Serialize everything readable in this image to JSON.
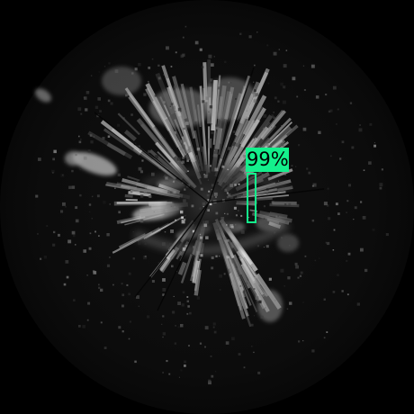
{
  "image": {
    "subject": "radar-sweep",
    "background_color": "#000000",
    "scope_color": "#0a0a0a",
    "echo_color": "#d8d8d8"
  },
  "detections": [
    {
      "label": "99%",
      "confidence": 0.99,
      "color": "#14f08c"
    }
  ]
}
